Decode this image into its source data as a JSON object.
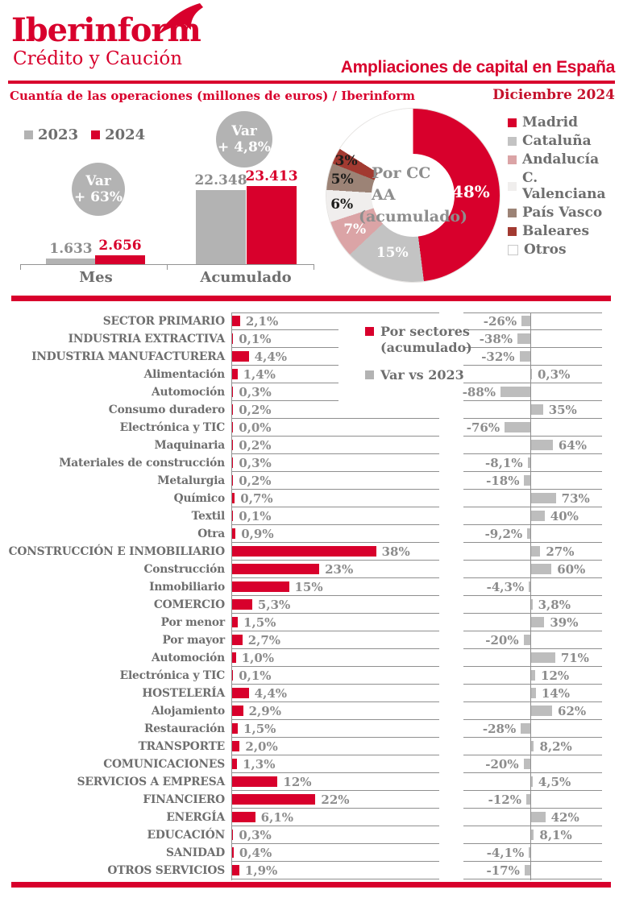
{
  "header": {
    "logo_title": "Iberinform",
    "logo_subtitle": "Crédito y Caución",
    "page_title": "Ampliaciones de capital en España",
    "subtitle_left": "Cuantía de las operaciones (millones de euros) / Iberinform",
    "subtitle_right": "Diciembre 2024"
  },
  "colors": {
    "brand_red": "#d8002c",
    "dark_red_text": "#c5122c",
    "bar_gray": "#bdbdbd",
    "circle_gray": "#b3b3b3",
    "label_dark": "#6e6e6e",
    "value_gray": "#8c8c8c",
    "gridline": "#8f8f8f",
    "pink": "#dba4a6",
    "very_light_gray": "#f0eeed",
    "taupe": "#9c8376",
    "brick": "#a23a31",
    "white": "#ffffff"
  },
  "chart_data": [
    {
      "type": "bar",
      "title": "Cuantía de las operaciones (millones de euros) / Iberinform",
      "categories": [
        "Mes",
        "Acumulado"
      ],
      "series": [
        {
          "name": "2023",
          "color": "#b3b3b3",
          "values": [
            1633,
            22348
          ],
          "value_labels": [
            "1.633",
            "22.348"
          ]
        },
        {
          "name": "2024",
          "color": "#d8002c",
          "values": [
            2656,
            23413
          ],
          "value_labels": [
            "2.656",
            "23.413"
          ]
        }
      ],
      "annotations": [
        {
          "line1": "Var",
          "line2": "+ 63%",
          "category": "Mes"
        },
        {
          "line1": "Var",
          "line2": "+ 4,8%",
          "category": "Acumulado"
        }
      ],
      "legend_position": "top-left",
      "grid": false
    },
    {
      "type": "pie",
      "center_line1": "Por CC AA",
      "center_line2": "(acumulado)",
      "labels": [
        "Madrid",
        "Cataluña",
        "Andalucía",
        "C. Valenciana",
        "País Vasco",
        "Baleares",
        "Otros"
      ],
      "values": [
        48,
        15,
        7,
        6,
        5,
        3,
        16
      ],
      "slice_labels": [
        "48%",
        "15%",
        "7%",
        "6%",
        "5%",
        "3%",
        ""
      ],
      "colors": [
        "#d8002c",
        "#c3c3c3",
        "#dba4a6",
        "#f0eeed",
        "#9c8376",
        "#a23a31",
        "#ffffff"
      ],
      "label_colors": [
        "#ffffff",
        "#ffffff",
        "#ffffff",
        "#1d1d1b",
        "#1d1d1b",
        "#1d1d1b",
        ""
      ],
      "legend_position": "right"
    },
    {
      "type": "bar",
      "orientation": "horizontal",
      "legend": {
        "s1_line1": "Por sectores",
        "s1_line2": "(acumulado)",
        "s2": "Var vs 2023"
      },
      "series_names": [
        "Por sectores (acumulado)",
        "Var vs 2023"
      ],
      "rows": [
        {
          "label": "SECTOR PRIMARIO",
          "share": 2.1,
          "share_label": "2,1%",
          "var": -26,
          "var_label": "-26%"
        },
        {
          "label": "INDUSTRIA EXTRACTIVA",
          "share": 0.1,
          "share_label": "0,1%",
          "var": -38,
          "var_label": "-38%"
        },
        {
          "label": "INDUSTRIA MANUFACTURERA",
          "share": 4.4,
          "share_label": "4,4%",
          "var": -32,
          "var_label": "-32%"
        },
        {
          "label": "Alimentación",
          "share": 1.4,
          "share_label": "1,4%",
          "var": 0.3,
          "var_label": "0,3%"
        },
        {
          "label": "Automoción",
          "share": 0.3,
          "share_label": "0,3%",
          "var": -88,
          "var_label": "-88%"
        },
        {
          "label": "Consumo duradero",
          "share": 0.2,
          "share_label": "0,2%",
          "var": 35,
          "var_label": "35%"
        },
        {
          "label": "Electrónica y TIC",
          "share": 0.0,
          "share_label": "0,0%",
          "var": -76,
          "var_label": "-76%"
        },
        {
          "label": "Maquinaria",
          "share": 0.2,
          "share_label": "0,2%",
          "var": 64,
          "var_label": "64%"
        },
        {
          "label": "Materiales de construcción",
          "share": 0.3,
          "share_label": "0,3%",
          "var": -8.1,
          "var_label": "-8,1%"
        },
        {
          "label": "Metalurgia",
          "share": 0.2,
          "share_label": "0,2%",
          "var": -18,
          "var_label": "-18%"
        },
        {
          "label": "Químico",
          "share": 0.7,
          "share_label": "0,7%",
          "var": 73,
          "var_label": "73%"
        },
        {
          "label": "Textil",
          "share": 0.1,
          "share_label": "0,1%",
          "var": 40,
          "var_label": "40%"
        },
        {
          "label": "Otra",
          "share": 0.9,
          "share_label": "0,9%",
          "var": -9.2,
          "var_label": "-9,2%"
        },
        {
          "label": "CONSTRUCCIÓN E INMOBILIARIO",
          "share": 38,
          "share_label": "38%",
          "var": 27,
          "var_label": "27%"
        },
        {
          "label": "Construcción",
          "share": 23,
          "share_label": "23%",
          "var": 60,
          "var_label": "60%"
        },
        {
          "label": "Inmobiliario",
          "share": 15,
          "share_label": "15%",
          "var": -4.3,
          "var_label": "-4,3%"
        },
        {
          "label": "COMERCIO",
          "share": 5.3,
          "share_label": "5,3%",
          "var": 3.8,
          "var_label": "3,8%"
        },
        {
          "label": "Por menor",
          "share": 1.5,
          "share_label": "1,5%",
          "var": 39,
          "var_label": "39%"
        },
        {
          "label": "Por mayor",
          "share": 2.7,
          "share_label": "2,7%",
          "var": -20,
          "var_label": "-20%"
        },
        {
          "label": "Automoción",
          "share": 1.0,
          "share_label": "1,0%",
          "var": 71,
          "var_label": "71%"
        },
        {
          "label": "Electrónica y TIC",
          "share": 0.1,
          "share_label": "0,1%",
          "var": 12,
          "var_label": "12%"
        },
        {
          "label": "HOSTELERÍA",
          "share": 4.4,
          "share_label": "4,4%",
          "var": 14,
          "var_label": "14%"
        },
        {
          "label": "Alojamiento",
          "share": 2.9,
          "share_label": "2,9%",
          "var": 62,
          "var_label": "62%"
        },
        {
          "label": "Restauración",
          "share": 1.5,
          "share_label": "1,5%",
          "var": -28,
          "var_label": "-28%"
        },
        {
          "label": "TRANSPORTE",
          "share": 2.0,
          "share_label": "2,0%",
          "var": 8.2,
          "var_label": "8,2%"
        },
        {
          "label": "COMUNICACIONES",
          "share": 1.3,
          "share_label": "1,3%",
          "var": -20,
          "var_label": "-20%"
        },
        {
          "label": "SERVICIOS A EMPRESA",
          "share": 12,
          "share_label": "12%",
          "var": 4.5,
          "var_label": "4,5%"
        },
        {
          "label": "FINANCIERO",
          "share": 22,
          "share_label": "22%",
          "var": -12,
          "var_label": "-12%"
        },
        {
          "label": "ENERGÍA",
          "share": 6.1,
          "share_label": "6,1%",
          "var": 42,
          "var_label": "42%"
        },
        {
          "label": "EDUCACIÓN",
          "share": 0.3,
          "share_label": "0,3%",
          "var": 8.1,
          "var_label": "8,1%"
        },
        {
          "label": "SANIDAD",
          "share": 0.4,
          "share_label": "0,4%",
          "var": -4.1,
          "var_label": "-4,1%"
        },
        {
          "label": "OTROS SERVICIOS",
          "share": 1.9,
          "share_label": "1,9%",
          "var": -17,
          "var_label": "-17%"
        }
      ]
    }
  ]
}
